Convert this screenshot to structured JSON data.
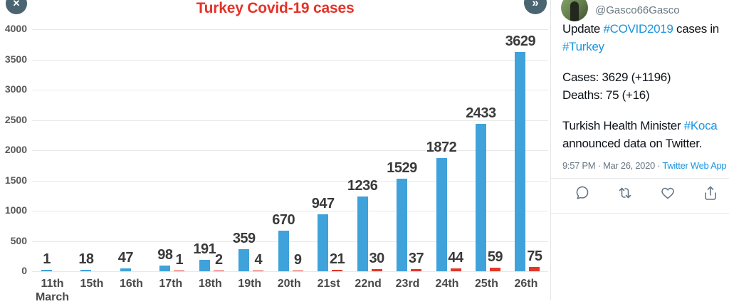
{
  "chart": {
    "title": "Turkey Covid-19 cases",
    "title_color": "#e53228",
    "nav": {
      "close_icon": "✕",
      "more_icon": "»"
    }
  },
  "chart_data": {
    "type": "bar",
    "title": "Turkey Covid-19 cases",
    "categories": [
      "11th March",
      "15th",
      "16th",
      "17th",
      "18th",
      "19th",
      "20th",
      "21st",
      "22nd",
      "23rd",
      "24th",
      "25th",
      "26th"
    ],
    "x_tick_labels": [
      [
        "11th",
        "March"
      ],
      [
        "15th"
      ],
      [
        "16th"
      ],
      [
        "17th"
      ],
      [
        "18th"
      ],
      [
        "19th"
      ],
      [
        "20th"
      ],
      [
        "21st"
      ],
      [
        "22nd"
      ],
      [
        "23rd"
      ],
      [
        "24th"
      ],
      [
        "25th"
      ],
      [
        "26th"
      ]
    ],
    "series": [
      {
        "name": "Cases",
        "color": "#3fa2da",
        "values": [
          1,
          18,
          47,
          98,
          191,
          359,
          670,
          947,
          1236,
          1529,
          1872,
          2433,
          3629
        ]
      },
      {
        "name": "Deaths",
        "color": "#e2372b",
        "values": [
          null,
          null,
          null,
          1,
          2,
          4,
          9,
          21,
          30,
          37,
          44,
          59,
          75
        ]
      }
    ],
    "xlabel": "",
    "ylabel": "",
    "ylim": [
      0,
      4000
    ],
    "ytick_interval": 500,
    "grid": true,
    "legend": "none",
    "data_labels": true
  },
  "tweet": {
    "handle": "@Gasco66Gasco",
    "lines": [
      {
        "gap": false,
        "segments": [
          {
            "t": "Update "
          },
          {
            "t": "#COVID2019",
            "link": true
          },
          {
            "t": " cases in"
          }
        ]
      },
      {
        "gap": false,
        "segments": [
          {
            "t": "#Turkey",
            "link": true
          }
        ]
      },
      {
        "gap": true,
        "segments": [
          {
            "t": "Cases: 3629 (+1196)"
          }
        ]
      },
      {
        "gap": false,
        "segments": [
          {
            "t": "Deaths: 75 (+16)"
          }
        ]
      },
      {
        "gap": true,
        "segments": [
          {
            "t": "Turkish Health Minister "
          },
          {
            "t": "#Koca",
            "link": true
          }
        ]
      },
      {
        "gap": false,
        "segments": [
          {
            "t": "announced data on Twitter."
          }
        ]
      }
    ],
    "meta": [
      {
        "t": "9:57 PM · Mar 26, 2020 · "
      },
      {
        "t": "Twitter Web App",
        "link": true
      }
    ],
    "link_color": "#1b95e0",
    "actions": [
      "reply",
      "retweet",
      "like",
      "share"
    ]
  }
}
